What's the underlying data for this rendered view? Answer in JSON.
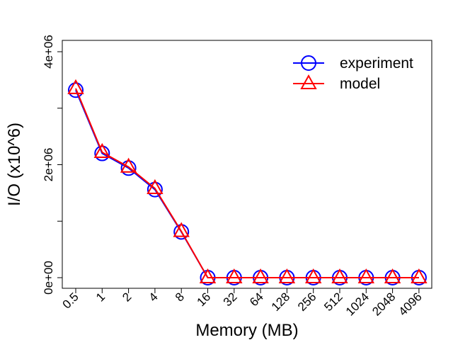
{
  "chart_data": {
    "type": "line",
    "categories": [
      "0.5",
      "1",
      "2",
      "4",
      "8",
      "16",
      "32",
      "64",
      "128",
      "256",
      "512",
      "1024",
      "2048",
      "4096"
    ],
    "series": [
      {
        "name": "experiment",
        "color": "#0000ff",
        "marker": "circle",
        "values": [
          3320000,
          2200000,
          1940000,
          1560000,
          810000,
          0,
          0,
          0,
          0,
          0,
          0,
          0,
          0,
          0
        ]
      },
      {
        "name": "model",
        "color": "#ff0000",
        "marker": "triangle",
        "values": [
          3350000,
          2220000,
          1960000,
          1580000,
          820000,
          0,
          0,
          0,
          0,
          0,
          0,
          0,
          0,
          0
        ]
      }
    ],
    "xlabel": "Memory (MB)",
    "ylabel": "I/O (x10^6)",
    "ylim": [
      0,
      4000000
    ],
    "ytick_values": [
      0,
      1000000,
      2000000,
      3000000,
      4000000
    ],
    "ytick_labels": [
      "0e+00",
      "",
      "2e+06",
      "",
      "4e+06"
    ],
    "grid": false,
    "legend_position": "top-right"
  }
}
